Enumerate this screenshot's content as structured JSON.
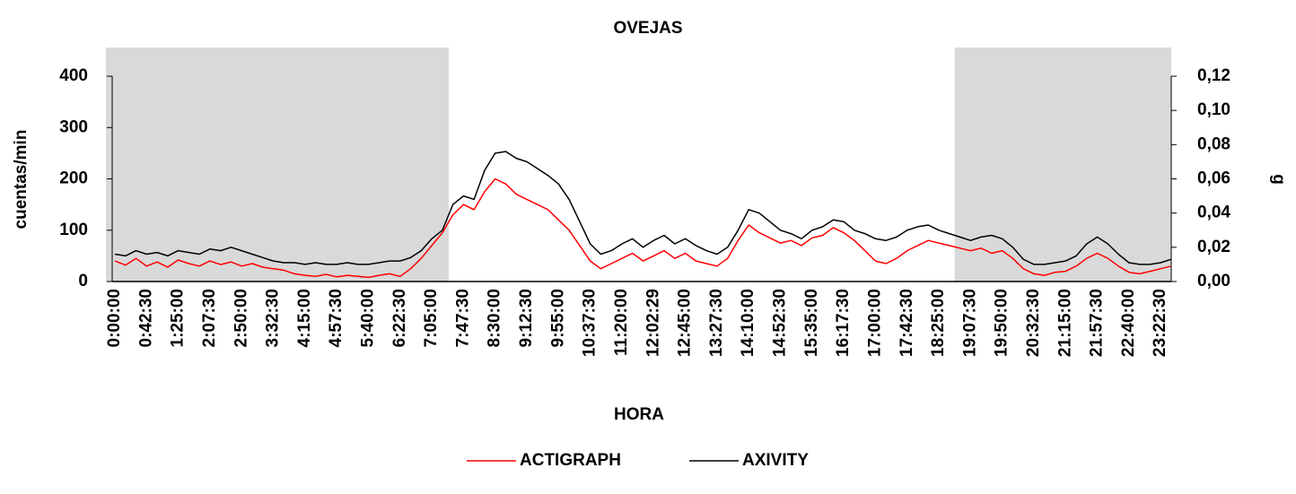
{
  "chart_data": {
    "type": "line",
    "title": "OVEJAS",
    "xlabel": "HORA",
    "ylabel": "cuentas/min",
    "y2label": "g",
    "categories": [
      "0:00:00",
      null,
      null,
      "0:42:30",
      null,
      null,
      "1:25:00",
      null,
      null,
      "2:07:30",
      null,
      null,
      "2:50:00",
      null,
      null,
      "3:32:30",
      null,
      null,
      "4:15:00",
      null,
      null,
      "4:57:30",
      null,
      null,
      "5:40:00",
      null,
      null,
      "6:22:30",
      null,
      null,
      "7:05:00",
      null,
      null,
      "7:47:30",
      null,
      null,
      "8:30:00",
      null,
      null,
      "9:12:30",
      null,
      null,
      "9:55:00",
      null,
      null,
      "10:37:30",
      null,
      null,
      "11:20:00",
      null,
      null,
      "12:02:29",
      null,
      null,
      "12:45:00",
      null,
      null,
      "13:27:30",
      null,
      null,
      "14:10:00",
      null,
      null,
      "14:52:30",
      null,
      null,
      "15:35:00",
      null,
      null,
      "16:17:30",
      null,
      null,
      "17:00:00",
      null,
      null,
      "17:42:30",
      null,
      null,
      "18:25:00",
      null,
      null,
      "19:07:30",
      null,
      null,
      "19:50:00",
      null,
      null,
      "20:32:30",
      null,
      null,
      "21:15:00",
      null,
      null,
      "21:57:30",
      null,
      null,
      "22:40:00",
      null,
      null,
      "23:22:30",
      null
    ],
    "series": [
      {
        "name": "ACTIGRAPH",
        "color": "#ff0000",
        "values": [
          40,
          32,
          45,
          30,
          38,
          28,
          42,
          35,
          30,
          40,
          33,
          38,
          30,
          35,
          28,
          25,
          22,
          15,
          12,
          10,
          14,
          9,
          12,
          10,
          8,
          12,
          15,
          10,
          25,
          45,
          70,
          95,
          130,
          150,
          140,
          175,
          200,
          190,
          170,
          160,
          150,
          140,
          120,
          100,
          70,
          40,
          25,
          35,
          45,
          55,
          40,
          50,
          60,
          45,
          55,
          40,
          35,
          30,
          45,
          80,
          110,
          95,
          85,
          75,
          80,
          70,
          85,
          90,
          105,
          95,
          80,
          60,
          40,
          35,
          45,
          60,
          70,
          80,
          75,
          70,
          65,
          60,
          65,
          55,
          60,
          45,
          25,
          15,
          12,
          18,
          20,
          30,
          45,
          55,
          45,
          30,
          18,
          15,
          20,
          25,
          30
        ]
      },
      {
        "name": "AXIVITY",
        "color": "#000000",
        "axis": "y2",
        "values": [
          0.016,
          0.015,
          0.018,
          0.016,
          0.017,
          0.015,
          0.018,
          0.017,
          0.016,
          0.019,
          0.018,
          0.02,
          0.018,
          0.016,
          0.014,
          0.012,
          0.011,
          0.011,
          0.01,
          0.011,
          0.01,
          0.01,
          0.011,
          0.01,
          0.01,
          0.011,
          0.012,
          0.012,
          0.014,
          0.018,
          0.025,
          0.03,
          0.045,
          0.05,
          0.048,
          0.065,
          0.075,
          0.076,
          0.072,
          0.07,
          0.066,
          0.062,
          0.057,
          0.048,
          0.035,
          0.022,
          0.016,
          0.018,
          0.022,
          0.025,
          0.02,
          0.024,
          0.027,
          0.022,
          0.025,
          0.021,
          0.018,
          0.016,
          0.02,
          0.03,
          0.042,
          0.04,
          0.035,
          0.03,
          0.028,
          0.025,
          0.03,
          0.032,
          0.036,
          0.035,
          0.03,
          0.028,
          0.025,
          0.024,
          0.026,
          0.03,
          0.032,
          0.033,
          0.03,
          0.028,
          0.026,
          0.024,
          0.026,
          0.027,
          0.025,
          0.02,
          0.013,
          0.01,
          0.01,
          0.011,
          0.012,
          0.015,
          0.022,
          0.026,
          0.022,
          0.016,
          0.011,
          0.01,
          0.01,
          0.011,
          0.013
        ]
      }
    ],
    "shaded": [
      {
        "from": 0,
        "to": 31.6
      },
      {
        "from": 79.5,
        "to": 100
      }
    ],
    "shade_color": "#d9d9d9",
    "ylim": [
      0,
      400
    ],
    "yticks": [
      0,
      100,
      200,
      300,
      400
    ],
    "y2lim": [
      0,
      0.12
    ],
    "y2ticks": [
      {
        "value": 0,
        "label": "0,00"
      },
      {
        "value": 0.02,
        "label": "0,02"
      },
      {
        "value": 0.04,
        "label": "0,04"
      },
      {
        "value": 0.06,
        "label": "0,06"
      },
      {
        "value": 0.08,
        "label": "0,08"
      },
      {
        "value": 0.1,
        "label": "0,10"
      },
      {
        "value": 0.12,
        "label": "0,12"
      }
    ],
    "legend": "bottom"
  }
}
